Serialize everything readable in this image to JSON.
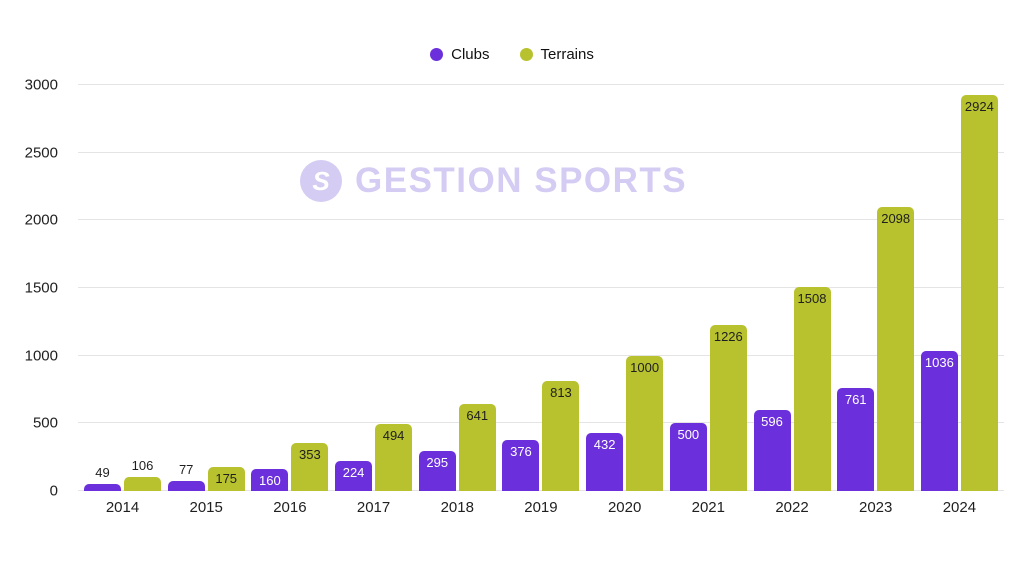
{
  "watermark": {
    "text": "GESTION SPORTS",
    "logo_letter": "S",
    "color": "#d5ccf3"
  },
  "legend": {
    "position": "top"
  },
  "chart_data": {
    "type": "bar",
    "title": "",
    "xlabel": "",
    "ylabel": "",
    "categories": [
      "2014",
      "2015",
      "2016",
      "2017",
      "2018",
      "2019",
      "2020",
      "2021",
      "2022",
      "2023",
      "2024"
    ],
    "series": [
      {
        "name": "Clubs",
        "color": "#6b30db",
        "label_color_inside": "#ffffff",
        "values": [
          49,
          77,
          160,
          224,
          295,
          376,
          432,
          500,
          596,
          761,
          1036
        ]
      },
      {
        "name": "Terrains",
        "color": "#b8c22f",
        "label_color_inside": "#1f1f1f",
        "values": [
          106,
          175,
          353,
          494,
          641,
          813,
          1000,
          1226,
          1508,
          2098,
          2924
        ]
      }
    ],
    "ylim": [
      0,
      3000
    ],
    "yticks": [
      0,
      500,
      1000,
      1500,
      2000,
      2500,
      3000
    ],
    "grid": true,
    "label_outside_threshold": 110,
    "label_outside_color": "#1f1f1f",
    "legend_position": "top"
  }
}
